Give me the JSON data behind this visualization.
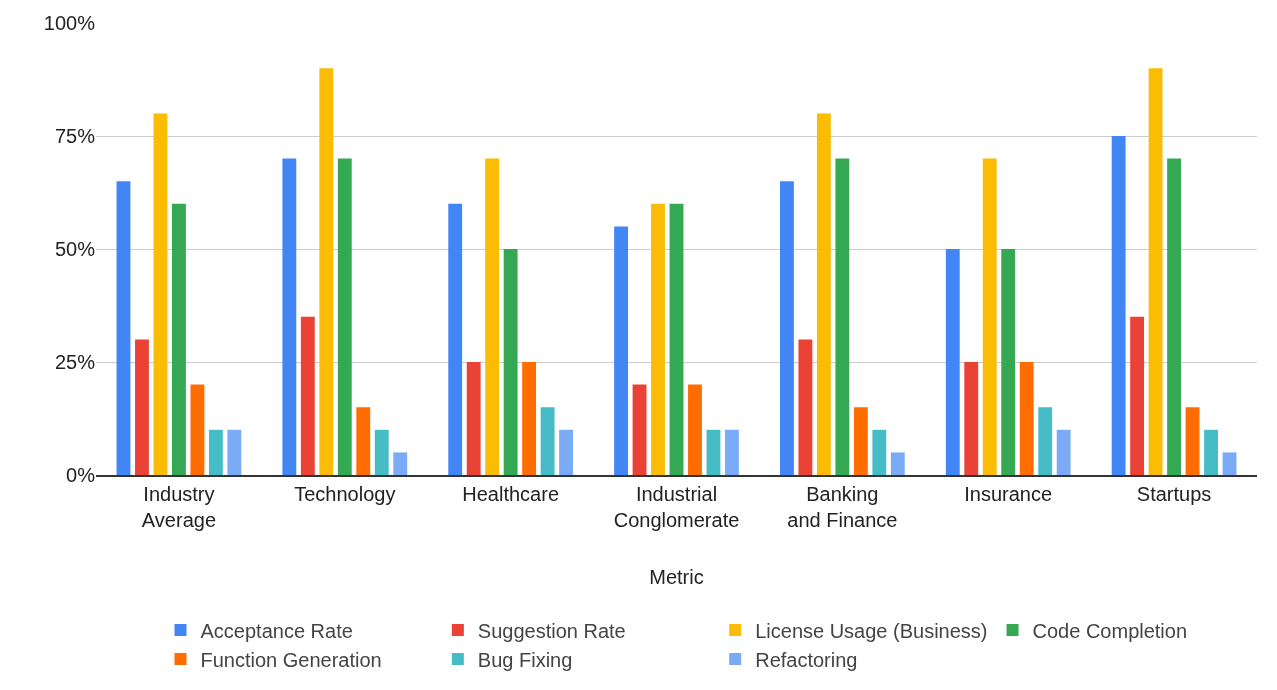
{
  "chart_data": {
    "type": "bar",
    "xlabel": "Metric",
    "categories": [
      "Industry Average",
      "Technology",
      "Healthcare",
      "Industrial Conglomerate",
      "Banking and Finance",
      "Insurance",
      "Startups"
    ],
    "series": [
      {
        "name": "Acceptance Rate",
        "color": "#4285f4",
        "values": [
          65,
          70,
          60,
          55,
          65,
          50,
          75
        ]
      },
      {
        "name": "Suggestion Rate",
        "color": "#ea4335",
        "values": [
          30,
          35,
          25,
          20,
          30,
          25,
          35
        ]
      },
      {
        "name": "License Usage (Business)",
        "color": "#fbbc04",
        "values": [
          80,
          90,
          70,
          60,
          80,
          70,
          90
        ]
      },
      {
        "name": "Code Completion",
        "color": "#34a853",
        "values": [
          60,
          70,
          50,
          60,
          70,
          50,
          70
        ]
      },
      {
        "name": "Function Generation",
        "color": "#ff6d01",
        "values": [
          20,
          15,
          25,
          20,
          15,
          25,
          15
        ]
      },
      {
        "name": "Bug Fixing",
        "color": "#46bdc6",
        "values": [
          10,
          10,
          15,
          10,
          10,
          15,
          10
        ]
      },
      {
        "name": "Refactoring",
        "color": "#7baaf7",
        "values": [
          10,
          5,
          10,
          10,
          5,
          10,
          5
        ]
      }
    ],
    "ylim": [
      0,
      100
    ],
    "yticks": [
      {
        "value": 0,
        "label": "0%"
      },
      {
        "value": 25,
        "label": "25%"
      },
      {
        "value": 50,
        "label": "50%"
      },
      {
        "value": 75,
        "label": "75%"
      },
      {
        "value": 100,
        "label": "100%"
      }
    ],
    "grid": "y",
    "legend": "bottom"
  }
}
